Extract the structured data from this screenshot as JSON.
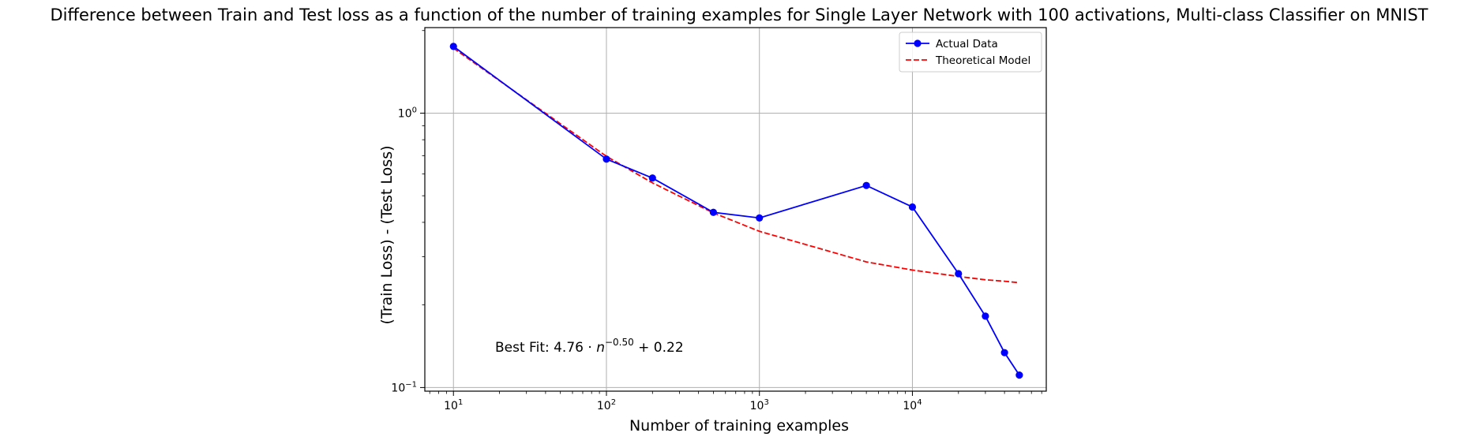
{
  "chart_data": {
    "type": "line",
    "title": "Difference between Train and Test loss as a function of the number of training examples for Single Layer Network with 100 activations, Multi-class Classifier on MNIST",
    "xlabel": "Number of training examples",
    "ylabel": "(Train Loss) - (Test Loss)",
    "xscale": "log",
    "yscale": "log",
    "xlim": [
      6.5,
      75000
    ],
    "ylim": [
      0.097,
      2.05
    ],
    "x_ticks": [
      {
        "value": 10,
        "base": "10",
        "exp": "1"
      },
      {
        "value": 100,
        "base": "10",
        "exp": "2"
      },
      {
        "value": 1000,
        "base": "10",
        "exp": "3"
      },
      {
        "value": 10000,
        "base": "10",
        "exp": "4"
      }
    ],
    "y_ticks": [
      {
        "value": 0.1,
        "base": "10",
        "exp": "−1"
      },
      {
        "value": 1,
        "base": "10",
        "exp": "0"
      }
    ],
    "grid": true,
    "legend_position": "top-right",
    "series": [
      {
        "name": "Actual Data",
        "style": "solid-marker",
        "color": "#0000ff",
        "x": [
          10,
          100,
          200,
          500,
          1000,
          5000,
          10000,
          20000,
          30000,
          40000,
          50000
        ],
        "y": [
          1.75,
          0.68,
          0.58,
          0.435,
          0.415,
          0.545,
          0.455,
          0.26,
          0.182,
          0.134,
          0.111
        ]
      },
      {
        "name": "Theoretical Model",
        "style": "dashed",
        "color": "#ff0000",
        "x": [
          10,
          100,
          200,
          500,
          1000,
          5000,
          10000,
          20000,
          30000,
          40000,
          50000
        ],
        "y": [
          1.725,
          0.696,
          0.557,
          0.433,
          0.371,
          0.287,
          0.268,
          0.254,
          0.247,
          0.244,
          0.241
        ]
      }
    ],
    "annotation": {
      "prefix": "Best Fit: 4.76 · ",
      "var": "n",
      "exp": "−0.50",
      "suffix": " + 0.22"
    }
  }
}
